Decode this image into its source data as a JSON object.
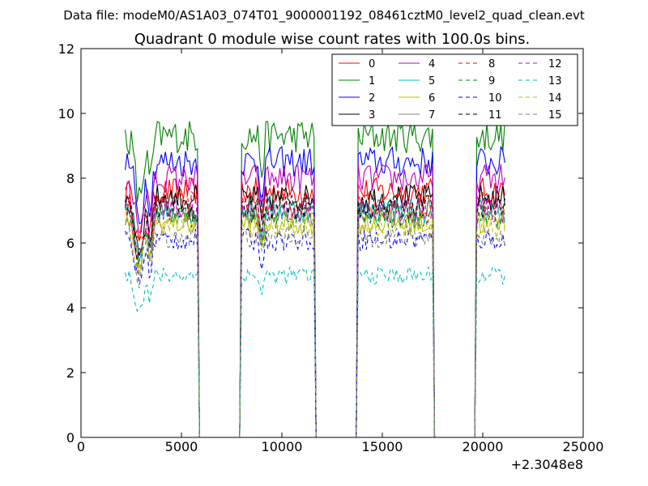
{
  "chart_data": {
    "type": "line",
    "file_title": "Data file: modeM0/AS1A03_074T01_9000001192_08461cztM0_level2_quad_clean.evt",
    "title": "Quadrant 0 module wise count rates with 100.0s bins.",
    "xlabel": "",
    "ylabel": "",
    "x_offset_label": "+2.3048e8",
    "xlim": [
      0,
      25000
    ],
    "ylim": [
      0,
      12
    ],
    "x_ticks": [
      0,
      5000,
      10000,
      15000,
      20000,
      25000
    ],
    "y_ticks": [
      0,
      2,
      4,
      6,
      8,
      10,
      12
    ],
    "legend_position": "top-right",
    "legend_columns": 4,
    "bin_size_s": 100,
    "good_time_intervals": [
      [
        2200,
        5800
      ],
      [
        7950,
        11650
      ],
      [
        13800,
        17500
      ],
      [
        19700,
        21100
      ]
    ],
    "series": [
      {
        "name": "0",
        "color": "#ff0000",
        "style": "solid",
        "level": 7.6
      },
      {
        "name": "1",
        "color": "#008000",
        "style": "solid",
        "level": 9.3
      },
      {
        "name": "2",
        "color": "#0000ff",
        "style": "solid",
        "level": 8.5
      },
      {
        "name": "3",
        "color": "#000000",
        "style": "solid",
        "level": 7.4
      },
      {
        "name": "4",
        "color": "#bf00bf",
        "style": "solid",
        "level": 8.0
      },
      {
        "name": "5",
        "color": "#00bfbf",
        "style": "solid",
        "level": 7.0
      },
      {
        "name": "6",
        "color": "#bfbf00",
        "style": "solid",
        "level": 6.6
      },
      {
        "name": "7",
        "color": "#808080",
        "style": "solid",
        "level": 6.9
      },
      {
        "name": "8",
        "color": "#ff0000",
        "style": "dashed",
        "level": 7.2
      },
      {
        "name": "9",
        "color": "#008000",
        "style": "dashed",
        "level": 6.8
      },
      {
        "name": "10",
        "color": "#0000ff",
        "style": "dashed",
        "level": 6.1
      },
      {
        "name": "11",
        "color": "#000000",
        "style": "dashed",
        "level": 7.1
      },
      {
        "name": "12",
        "color": "#bf00bf",
        "style": "dashed",
        "level": 7.0
      },
      {
        "name": "13",
        "color": "#00bfbf",
        "style": "dashed",
        "level": 5.0
      },
      {
        "name": "14",
        "color": "#bfbf00",
        "style": "dashed",
        "level": 6.5
      },
      {
        "name": "15",
        "color": "#808080",
        "style": "dashed",
        "level": 6.2
      }
    ]
  }
}
